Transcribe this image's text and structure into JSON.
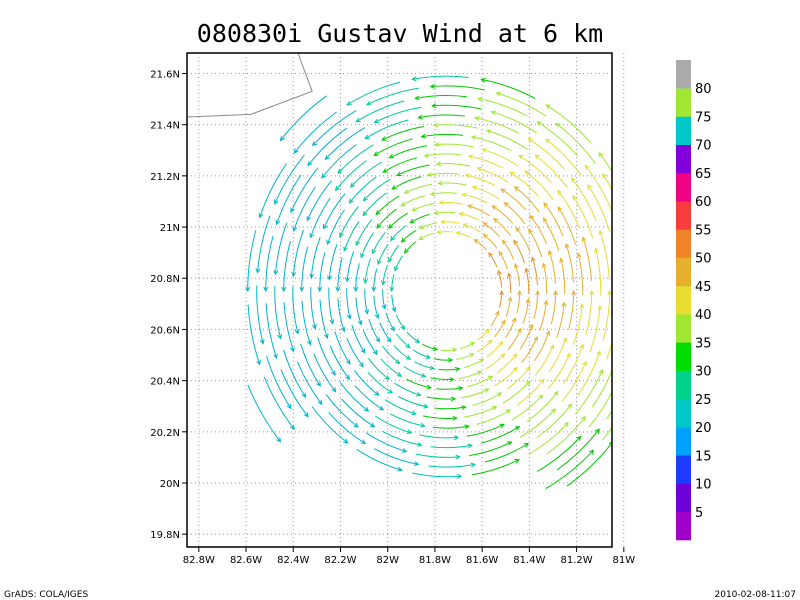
{
  "chart_data": {
    "type": "streamline",
    "title": "080830i Gustav Wind at 6 km",
    "x_ticks": [
      "82.8W",
      "82.6W",
      "82.4W",
      "82.2W",
      "82W",
      "81.8W",
      "81.6W",
      "81.4W",
      "81.2W",
      "81W"
    ],
    "x_values": [
      -82.8,
      -82.6,
      -82.4,
      -82.2,
      -82.0,
      -81.8,
      -81.6,
      -81.4,
      -81.2,
      -81.0
    ],
    "y_ticks": [
      "19.8N",
      "20N",
      "20.2N",
      "20.4N",
      "20.6N",
      "20.8N",
      "21N",
      "21.2N",
      "21.4N",
      "21.6N"
    ],
    "y_values": [
      19.8,
      20.0,
      20.2,
      20.4,
      20.6,
      20.8,
      21.0,
      21.2,
      21.4,
      21.6
    ],
    "xlim": [
      -82.85,
      -81.05
    ],
    "ylim": [
      19.75,
      21.68
    ],
    "grid": true,
    "center": {
      "lon": -81.75,
      "lat": 20.75
    },
    "colorbar": {
      "labels": [
        "5",
        "10",
        "15",
        "20",
        "25",
        "30",
        "35",
        "40",
        "45",
        "50",
        "55",
        "60",
        "65",
        "70",
        "75",
        "80"
      ],
      "colors": [
        "#a000c8",
        "#6e00dc",
        "#1e3cff",
        "#00a0ff",
        "#00c8c8",
        "#00d28c",
        "#00dc00",
        "#a0e632",
        "#e6dc32",
        "#e6af2d",
        "#f08228",
        "#fa3c3c",
        "#f00082",
        "#8200dc",
        "#00c8c8",
        "#a0e632",
        "#aaaaaa"
      ]
    }
  },
  "footer": {
    "left": "GrADS: COLA/IGES",
    "right": "2010-02-08-11:07"
  }
}
